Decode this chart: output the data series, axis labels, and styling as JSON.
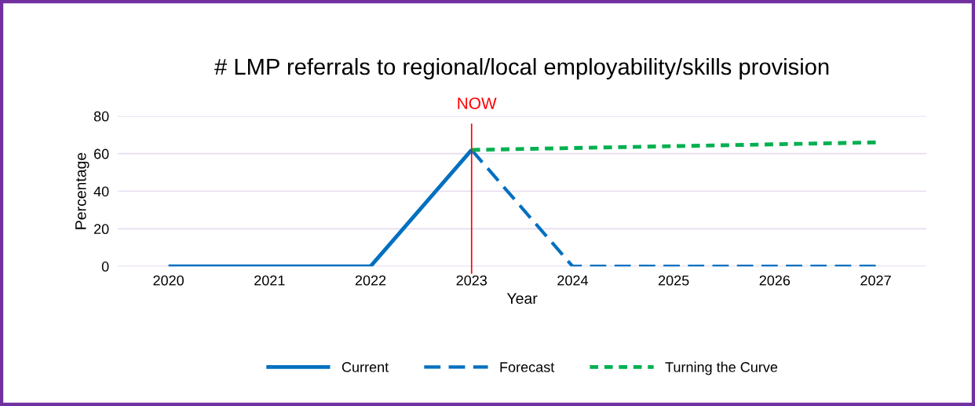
{
  "chart_data": {
    "type": "line",
    "title": "# LMP referrals to regional/local employability/skills provision",
    "xlabel": "Year",
    "ylabel": "Percentage",
    "categories": [
      "2020",
      "2021",
      "2022",
      "2023",
      "2024",
      "2025",
      "2026",
      "2027"
    ],
    "series": [
      {
        "name": "Current",
        "color": "#0070c0",
        "line_style": "solid",
        "values": [
          0,
          0,
          0,
          62,
          null,
          null,
          null,
          null
        ]
      },
      {
        "name": "Forecast",
        "color": "#0070c0",
        "line_style": "dashed",
        "values": [
          null,
          null,
          null,
          62,
          0,
          0,
          0,
          0
        ]
      },
      {
        "name": "Turning the Curve",
        "color": "#00b050",
        "line_style": "dotted",
        "values": [
          null,
          null,
          null,
          62,
          63,
          64,
          65,
          66
        ]
      }
    ],
    "ylim": [
      0,
      80
    ],
    "yticks": [
      0,
      20,
      40,
      60,
      80
    ],
    "grid": "y",
    "legend": "bottom",
    "marker": "none",
    "ref_lines": [
      {
        "axis": "x",
        "value": "2023",
        "label": "NOW",
        "color": "#ff0000",
        "line_style": "solid"
      }
    ]
  }
}
